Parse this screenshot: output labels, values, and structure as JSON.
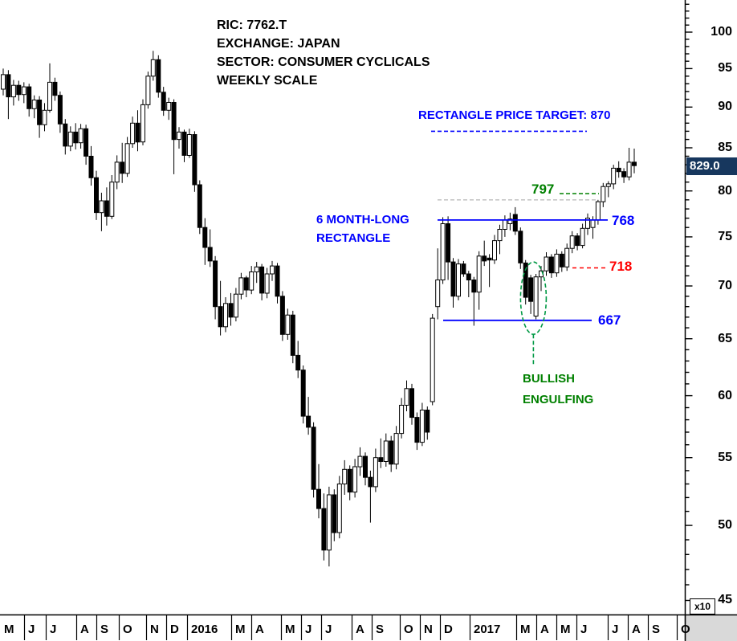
{
  "header": {
    "lines": [
      "RIC: 7762.T",
      "EXCHANGE: JAPAN",
      "SECTOR: CONSUMER CYCLICALS",
      "WEEKLY SCALE"
    ]
  },
  "annotations": {
    "price_target": {
      "label": "RECTANGLE PRICE TARGET: 870",
      "level": 87.0,
      "color": "#0000FF",
      "style": "dashed"
    },
    "level_797": {
      "label": "797",
      "level": 79.7,
      "color": "#008000",
      "style": "dashed"
    },
    "prior_level": {
      "level": 79.0,
      "color": "#C6C6C6",
      "style": "dashed"
    },
    "rectangle": {
      "line1": "6 MONTH-LONG",
      "line2": "RECTANGLE",
      "color": "#0000FF"
    },
    "level_768": {
      "label": "768",
      "level": 76.8,
      "color": "#0000FF",
      "style": "solid"
    },
    "level_718": {
      "label": "718",
      "level": 71.8,
      "color": "#FF0000",
      "style": "dashed"
    },
    "level_667": {
      "label": "667",
      "level": 66.7,
      "color": "#0000FF",
      "style": "solid"
    },
    "engulfing": {
      "line1": "BULLISH",
      "line2": "ENGULFING",
      "color": "#008000",
      "ellipse": {
        "center_week": 102.5,
        "top_price": 72.4,
        "bottom_price": 65.4
      }
    }
  },
  "price_axis": {
    "scale": "logarithmic",
    "major_labels": [
      "100",
      "95",
      "90",
      "85",
      "80",
      "75",
      "70",
      "65",
      "60",
      "55",
      "50",
      "45"
    ],
    "major_values": [
      100,
      95,
      90,
      85,
      80,
      75,
      70,
      65,
      60,
      55,
      50,
      45
    ],
    "minor_step": 1,
    "current_label": "829.0",
    "current_value": 82.9,
    "multiplier": "x10",
    "tag_color": "#17375E"
  },
  "time_axis": {
    "labels": [
      "M",
      "J",
      "J",
      "A",
      "S",
      "O",
      "N",
      "D",
      "2016",
      "M",
      "A",
      "M",
      "J",
      "J",
      "A",
      "S",
      "O",
      "N",
      "D",
      "2017",
      "M",
      "A",
      "M",
      "J",
      "J",
      "A",
      "S",
      "O"
    ]
  },
  "chart_data": {
    "type": "candlestick",
    "timeframe": "weekly",
    "symbol": "7762.T",
    "exchange": "JAPAN",
    "sector": "CONSUMER CYCLICALS",
    "x_range": "May 2015 - Oct 2017",
    "y_units": "price in axis units (multiply by 10 for yen)",
    "ylim": [
      45,
      104
    ],
    "last_close": 82.9,
    "ohlc": [
      [
        92.3,
        95.0,
        91.5,
        94.2
      ],
      [
        94.2,
        94.8,
        88.5,
        91.3
      ],
      [
        91.3,
        93.5,
        90.2,
        92.8
      ],
      [
        92.8,
        93.4,
        90.8,
        91.6
      ],
      [
        91.6,
        93.2,
        90.5,
        92.6
      ],
      [
        92.6,
        93.0,
        88.8,
        89.8
      ],
      [
        89.8,
        91.5,
        88.6,
        90.9
      ],
      [
        90.9,
        91.4,
        86.2,
        87.8
      ],
      [
        87.8,
        90.5,
        87.0,
        89.6
      ],
      [
        89.6,
        95.7,
        89.3,
        93.2
      ],
      [
        93.2,
        93.8,
        90.8,
        91.5
      ],
      [
        91.5,
        92.0,
        86.8,
        87.9
      ],
      [
        87.9,
        88.5,
        84.2,
        85.2
      ],
      [
        85.2,
        87.6,
        84.6,
        86.9
      ],
      [
        86.9,
        88.0,
        84.8,
        85.6
      ],
      [
        85.6,
        87.9,
        84.9,
        87.3
      ],
      [
        87.3,
        87.8,
        83.0,
        84.0
      ],
      [
        84.0,
        85.2,
        80.6,
        81.5
      ],
      [
        81.5,
        82.3,
        76.8,
        77.6
      ],
      [
        77.6,
        79.8,
        75.6,
        78.9
      ],
      [
        78.9,
        80.4,
        76.2,
        77.2
      ],
      [
        77.2,
        81.8,
        76.9,
        81.0
      ],
      [
        81.0,
        84.1,
        80.2,
        83.3
      ],
      [
        83.3,
        85.6,
        80.9,
        82.0
      ],
      [
        82.0,
        86.3,
        81.6,
        85.5
      ],
      [
        85.5,
        88.8,
        85.0,
        88.0
      ],
      [
        88.0,
        89.6,
        84.6,
        85.7
      ],
      [
        85.7,
        91.0,
        85.3,
        90.3
      ],
      [
        90.3,
        94.6,
        89.8,
        94.0
      ],
      [
        94.0,
        97.4,
        93.4,
        96.2
      ],
      [
        96.2,
        96.8,
        91.2,
        91.9
      ],
      [
        91.9,
        92.6,
        88.9,
        89.6
      ],
      [
        89.6,
        91.2,
        88.4,
        90.6
      ],
      [
        90.6,
        91.0,
        81.9,
        86.0
      ],
      [
        86.0,
        87.5,
        84.9,
        86.9
      ],
      [
        86.9,
        87.2,
        83.3,
        84.1
      ],
      [
        84.1,
        87.3,
        83.8,
        86.6
      ],
      [
        86.6,
        87.0,
        79.9,
        80.7
      ],
      [
        80.7,
        81.2,
        75.3,
        76.0
      ],
      [
        76.0,
        77.0,
        72.1,
        73.9
      ],
      [
        73.9,
        75.8,
        71.9,
        72.5
      ],
      [
        72.5,
        73.0,
        66.8,
        68.0
      ],
      [
        68.0,
        70.5,
        65.3,
        66.1
      ],
      [
        66.1,
        68.9,
        65.6,
        68.3
      ],
      [
        68.3,
        69.3,
        66.2,
        67.0
      ],
      [
        67.0,
        69.8,
        66.6,
        69.2
      ],
      [
        69.2,
        71.3,
        68.7,
        70.8
      ],
      [
        70.8,
        71.0,
        68.9,
        69.6
      ],
      [
        69.6,
        72.0,
        69.2,
        71.4
      ],
      [
        71.4,
        72.4,
        70.3,
        71.9
      ],
      [
        71.9,
        72.2,
        68.6,
        69.3
      ],
      [
        69.3,
        71.8,
        68.8,
        71.2
      ],
      [
        71.2,
        72.5,
        70.5,
        72.0
      ],
      [
        72.0,
        72.3,
        68.3,
        69.0
      ],
      [
        69.0,
        69.5,
        64.8,
        65.4
      ],
      [
        65.4,
        67.8,
        64.9,
        67.2
      ],
      [
        67.2,
        67.6,
        62.8,
        63.5
      ],
      [
        63.5,
        64.8,
        61.5,
        62.2
      ],
      [
        62.2,
        62.6,
        57.7,
        58.3
      ],
      [
        58.3,
        59.9,
        56.8,
        57.4
      ],
      [
        57.4,
        57.8,
        52.0,
        52.6
      ],
      [
        52.6,
        54.5,
        50.5,
        51.2
      ],
      [
        51.2,
        52.3,
        47.6,
        48.3
      ],
      [
        48.3,
        52.8,
        47.2,
        52.2
      ],
      [
        52.2,
        52.6,
        48.9,
        49.5
      ],
      [
        49.5,
        53.6,
        49.1,
        53.0
      ],
      [
        53.0,
        54.8,
        52.2,
        54.1
      ],
      [
        54.1,
        54.4,
        51.8,
        52.4
      ],
      [
        52.4,
        54.9,
        52.0,
        54.3
      ],
      [
        54.3,
        55.8,
        53.6,
        55.1
      ],
      [
        55.1,
        55.4,
        52.9,
        53.5
      ],
      [
        53.5,
        54.0,
        50.2,
        52.8
      ],
      [
        52.8,
        55.7,
        52.4,
        55.0
      ],
      [
        55.0,
        56.5,
        54.2,
        54.7
      ],
      [
        54.7,
        56.9,
        54.3,
        56.3
      ],
      [
        56.3,
        56.7,
        53.9,
        54.5
      ],
      [
        54.5,
        57.5,
        54.1,
        56.9
      ],
      [
        56.9,
        59.8,
        56.5,
        59.2
      ],
      [
        59.2,
        61.3,
        58.7,
        60.6
      ],
      [
        60.6,
        61.0,
        57.6,
        58.2
      ],
      [
        58.2,
        58.6,
        55.6,
        56.2
      ],
      [
        56.2,
        59.4,
        55.9,
        58.8
      ],
      [
        58.8,
        59.1,
        56.4,
        57.0
      ],
      [
        59.5,
        67.3,
        59.2,
        66.9
      ],
      [
        68.0,
        73.8,
        66.8,
        70.6
      ],
      [
        70.6,
        77.1,
        70.2,
        76.4
      ],
      [
        76.4,
        77.2,
        70.6,
        72.4
      ],
      [
        72.4,
        72.8,
        67.9,
        69.0
      ],
      [
        69.0,
        72.7,
        68.6,
        72.2
      ],
      [
        72.2,
        72.5,
        70.9,
        71.2
      ],
      [
        71.2,
        71.5,
        68.9,
        70.6
      ],
      [
        70.6,
        70.9,
        66.2,
        69.4
      ],
      [
        69.4,
        73.5,
        67.7,
        73.0
      ],
      [
        73.0,
        74.6,
        72.0,
        72.5
      ],
      [
        72.8,
        73.2,
        69.9,
        72.6
      ],
      [
        72.6,
        75.2,
        72.2,
        74.6
      ],
      [
        74.6,
        76.3,
        73.2,
        75.8
      ],
      [
        75.8,
        77.3,
        75.0,
        76.8
      ],
      [
        76.4,
        77.6,
        75.7,
        76.9
      ],
      [
        77.4,
        78.2,
        75.2,
        75.6
      ],
      [
        75.6,
        76.0,
        71.7,
        72.3
      ],
      [
        72.3,
        72.6,
        68.2,
        68.9
      ],
      [
        70.8,
        71.1,
        67.3,
        68.5
      ],
      [
        67.1,
        71.2,
        66.8,
        70.9
      ],
      [
        70.9,
        72.0,
        69.5,
        71.5
      ],
      [
        71.5,
        73.4,
        71.0,
        72.9
      ],
      [
        72.9,
        73.2,
        70.8,
        71.3
      ],
      [
        71.3,
        73.7,
        70.9,
        73.2
      ],
      [
        73.2,
        73.5,
        71.4,
        71.9
      ],
      [
        71.9,
        74.3,
        71.5,
        73.8
      ],
      [
        73.8,
        75.6,
        73.3,
        75.1
      ],
      [
        75.1,
        75.4,
        73.6,
        74.1
      ],
      [
        74.1,
        76.4,
        73.8,
        75.9
      ],
      [
        75.9,
        77.5,
        75.2,
        77.0
      ],
      [
        76.0,
        77.2,
        74.8,
        76.8
      ],
      [
        76.8,
        79.0,
        76.3,
        78.8
      ],
      [
        78.8,
        80.9,
        78.2,
        80.5
      ],
      [
        80.5,
        81.1,
        79.3,
        80.8
      ],
      [
        80.8,
        83.0,
        80.2,
        82.6
      ],
      [
        82.6,
        83.4,
        81.5,
        82.2
      ],
      [
        82.2,
        82.6,
        80.9,
        81.6
      ],
      [
        81.6,
        85.0,
        81.2,
        83.3
      ],
      [
        83.3,
        84.9,
        82.0,
        82.9
      ]
    ]
  }
}
